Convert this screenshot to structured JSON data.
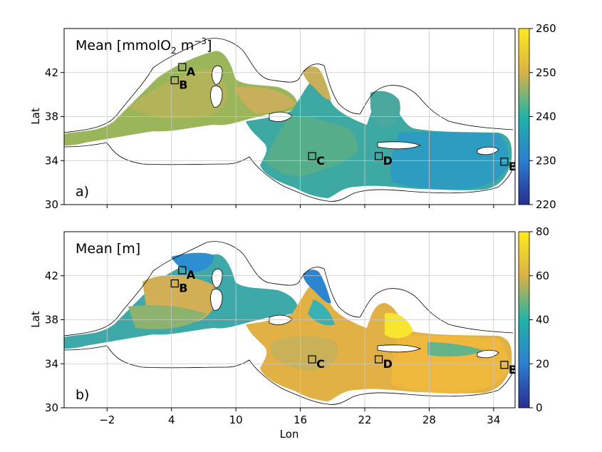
{
  "axes": {
    "xlabel": "Lon",
    "ylabel": "Lat",
    "xticks": [
      -2,
      4,
      10,
      16,
      22,
      28,
      34
    ],
    "xtick_labels": [
      "−2",
      "4",
      "10",
      "16",
      "22",
      "28",
      "34"
    ],
    "yticks": [
      30,
      34,
      38,
      42
    ],
    "xlim": [
      -6,
      36
    ],
    "ylim": [
      30,
      46
    ]
  },
  "panels": [
    {
      "id": "a",
      "label": "a)",
      "title_main": "Mean [mmolO",
      "title_sub": "2",
      "title_mid": " m",
      "title_sup": "−3",
      "title_end": "]",
      "colorbar": {
        "min": 220,
        "max": 260,
        "ticks": [
          220,
          230,
          240,
          250,
          260
        ]
      }
    },
    {
      "id": "b",
      "label": "b)",
      "title_main": "Mean [m]",
      "colorbar": {
        "min": 0,
        "max": 80,
        "ticks": [
          0,
          20,
          40,
          60,
          80
        ]
      }
    }
  ],
  "stations": [
    {
      "name": "A",
      "lon": 5.0,
      "lat": 42.5
    },
    {
      "name": "B",
      "lon": 4.3,
      "lat": 41.3
    },
    {
      "name": "C",
      "lon": 17.1,
      "lat": 34.4
    },
    {
      "name": "D",
      "lon": 23.3,
      "lat": 34.4
    },
    {
      "name": "E",
      "lon": 35.0,
      "lat": 33.9
    }
  ],
  "colors": {
    "low": "#2c3696",
    "mid": "#22a7b5",
    "high": "#fde725",
    "coast": "#000000",
    "grid": "#c8c8c8"
  }
}
